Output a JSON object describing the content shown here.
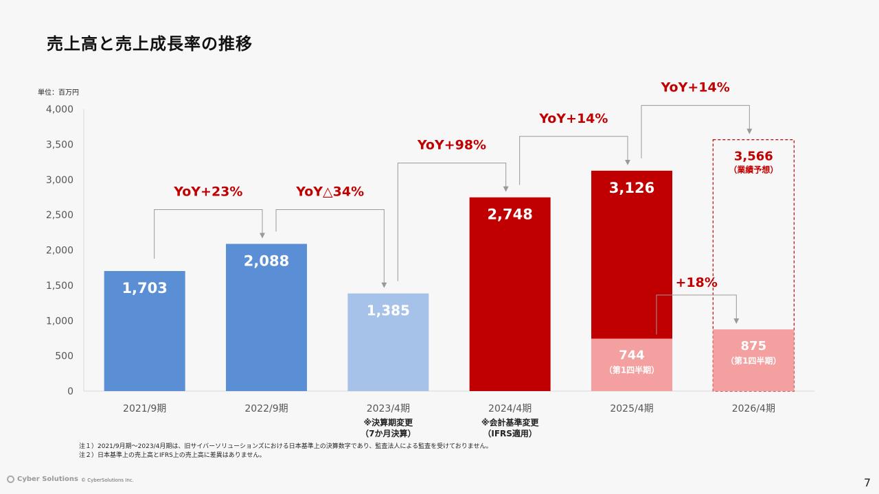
{
  "page": {
    "title": "売上高と売上成長率の推移",
    "unit": "単位：百万円",
    "page_number": "7"
  },
  "notes": [
    "注１）2021/9月期～2023/4月期は、旧サイバーソリューションズにおける日本基準上の決算数字であり、監査法人による監査を受けておりません。",
    "注２）日本基準上の売上高とIFRS上の売上高に差異はありません。"
  ],
  "footer": {
    "logo_text": "Cyber Solutions",
    "copyright": "© CyberSolutions Inc."
  },
  "colors": {
    "blue": "#5b8fd5",
    "light_blue": "#a6c2e8",
    "red": "#c00000",
    "pink": "#f4a0a0",
    "yoy": "#c00000"
  },
  "chart_data": {
    "type": "bar",
    "ylim": [
      0,
      4000
    ],
    "yticks": [
      0,
      500,
      1000,
      1500,
      2000,
      2500,
      3000,
      3500,
      4000
    ],
    "categories": [
      "2021/9期",
      "2022/9期",
      "2023/4期",
      "2024/4期",
      "2025/4期",
      "2026/4期"
    ],
    "category_notes": [
      "",
      "",
      "※決算期変更\n（7か月決算）",
      "※会計基準変更\n（IFRS適用）",
      "",
      ""
    ],
    "series": [
      {
        "name": "売上高",
        "values": [
          1703,
          2088,
          1385,
          2748,
          3126,
          3566
        ],
        "labels": [
          "1,703",
          "2,088",
          "1,385",
          "2,748",
          "3,126",
          "3,566"
        ],
        "colors": [
          "blue",
          "blue",
          "light_blue",
          "red",
          "red",
          "forecast"
        ]
      },
      {
        "name": "第1四半期",
        "values": [
          null,
          null,
          null,
          null,
          744,
          875
        ],
        "labels": [
          "",
          "",
          "",
          "",
          "744",
          "875"
        ],
        "sublabel": "（第1四半期）"
      }
    ],
    "forecast_label": "（業績予想）",
    "yoy": [
      {
        "from": 0,
        "to": 1,
        "label": "YoY+23%"
      },
      {
        "from": 1,
        "to": 2,
        "label": "YoY△34%"
      },
      {
        "from": 2,
        "to": 3,
        "label": "YoY+98%"
      },
      {
        "from": 3,
        "to": 4,
        "label": "YoY+14%"
      },
      {
        "from": 4,
        "to": 5,
        "label": "YoY+14%"
      }
    ],
    "q1_growth": {
      "from": 4,
      "to": 5,
      "label": "+18%"
    }
  }
}
